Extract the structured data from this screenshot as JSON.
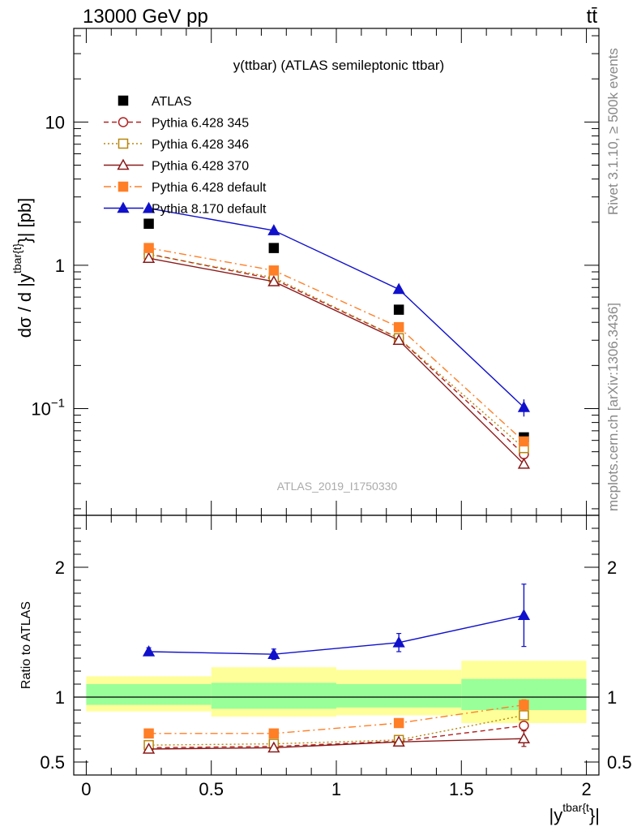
{
  "header": {
    "energy_label": "13000 GeV pp",
    "process_label": "tt̄"
  },
  "side_labels": {
    "rivet": "Rivet 3.1.10, ≥ 500k events",
    "mcplots": "mcplots.cern.ch [arXiv:1306.3436]"
  },
  "chart_data": [
    {
      "type": "scatter",
      "title": "y(ttbar) (ATLAS semileptonic ttbar)",
      "watermark": "ATLAS_2019_I1750330",
      "ylabel_main": "dσ / d |y",
      "ylabel_sup": "tbar{t}",
      "ylabel_tail": "}| [pb]",
      "log_y": true,
      "ylim": [
        0.018,
        45
      ],
      "xlim": [
        -0.05,
        2.05
      ],
      "y_ticks": [
        {
          "value": 0.1,
          "base": "10",
          "exp": "−1"
        },
        {
          "value": 1,
          "base": "1",
          "exp": ""
        },
        {
          "value": 10,
          "base": "10",
          "exp": ""
        }
      ],
      "x": [
        0.25,
        0.75,
        1.25,
        1.75
      ],
      "series": [
        {
          "name": "ATLAS",
          "color": "#000000",
          "marker": "square-filled",
          "line": "none",
          "values": [
            1.95,
            1.32,
            0.49,
            0.063
          ],
          "err": [
            0,
            0,
            0,
            0
          ]
        },
        {
          "name": "Pythia 6.428 345",
          "color": "#b22222",
          "marker": "circle-open",
          "line": "dashed",
          "values": [
            1.2,
            0.8,
            0.31,
            0.048
          ],
          "err": [
            0,
            0,
            0,
            0
          ]
        },
        {
          "name": "Pythia 6.428 346",
          "color": "#b8860b",
          "marker": "square-open",
          "line": "dotted",
          "values": [
            1.19,
            0.82,
            0.31,
            0.053
          ],
          "err": [
            0,
            0,
            0,
            0
          ]
        },
        {
          "name": "Pythia 6.428 370",
          "color": "#8b1a1a",
          "marker": "triangle-open",
          "line": "solid",
          "values": [
            1.12,
            0.77,
            0.3,
            0.041
          ],
          "err": [
            0,
            0,
            0,
            0
          ]
        },
        {
          "name": "Pythia 6.428 default",
          "color": "#ff7f27",
          "marker": "square-filled",
          "line": "dashdot",
          "values": [
            1.32,
            0.92,
            0.37,
            0.059
          ],
          "err": [
            0,
            0,
            0,
            0
          ]
        },
        {
          "name": "Pythia 8.170 default",
          "color": "#1111cc",
          "marker": "triangle-filled",
          "line": "solid",
          "values": [
            2.5,
            1.75,
            0.68,
            0.102
          ],
          "err": [
            0,
            0,
            0,
            0.014
          ]
        }
      ]
    },
    {
      "type": "scatter",
      "ylabel": "Ratio to ATLAS",
      "xlabel_main": "|y",
      "xlabel_sup": "tbar{t",
      "xlabel_tail": "}|",
      "ylim": [
        0.4,
        2.4
      ],
      "xlim": [
        -0.05,
        2.05
      ],
      "y_ticks": [
        0.5,
        1,
        2
      ],
      "x_ticks": [
        "0",
        "0.5",
        "1",
        "1.5",
        "2"
      ],
      "bands": [
        {
          "x0": 0,
          "x1": 0.5,
          "green": [
            0.94,
            1.1
          ],
          "yellow": [
            0.89,
            1.16
          ]
        },
        {
          "x0": 0.5,
          "x1": 1,
          "green": [
            0.91,
            1.11
          ],
          "yellow": [
            0.85,
            1.23
          ]
        },
        {
          "x0": 1,
          "x1": 1.5,
          "green": [
            0.92,
            1.1
          ],
          "yellow": [
            0.86,
            1.21
          ]
        },
        {
          "x0": 1.5,
          "x1": 2,
          "green": [
            0.9,
            1.14
          ],
          "yellow": [
            0.8,
            1.28
          ]
        }
      ],
      "x": [
        0.25,
        0.75,
        1.25,
        1.75
      ],
      "series": [
        {
          "name": "Pythia 6.428 345",
          "color": "#b22222",
          "marker": "circle-open",
          "line": "dashed",
          "values": [
            0.61,
            0.62,
            0.66,
            0.78
          ],
          "err": [
            0,
            0,
            0,
            0
          ]
        },
        {
          "name": "Pythia 6.428 346",
          "color": "#b8860b",
          "marker": "square-open",
          "line": "dotted",
          "values": [
            0.63,
            0.64,
            0.67,
            0.86
          ],
          "err": [
            0,
            0,
            0,
            0
          ]
        },
        {
          "name": "Pythia 6.428 370",
          "color": "#8b1a1a",
          "marker": "triangle-open",
          "line": "solid",
          "values": [
            0.6,
            0.61,
            0.655,
            0.68
          ],
          "err": [
            0,
            0,
            0,
            0.06
          ]
        },
        {
          "name": "Pythia 6.428 default",
          "color": "#ff7f27",
          "marker": "square-filled",
          "line": "dashdot",
          "values": [
            0.72,
            0.72,
            0.8,
            0.94
          ],
          "err": [
            0.01,
            0.01,
            0.02,
            0.04
          ]
        },
        {
          "name": "Pythia 8.170 default",
          "color": "#1111cc",
          "marker": "triangle-filled",
          "line": "solid",
          "values": [
            1.35,
            1.33,
            1.42,
            1.63
          ],
          "err": [
            0.03,
            0.04,
            0.07,
            0.24
          ]
        }
      ]
    }
  ]
}
